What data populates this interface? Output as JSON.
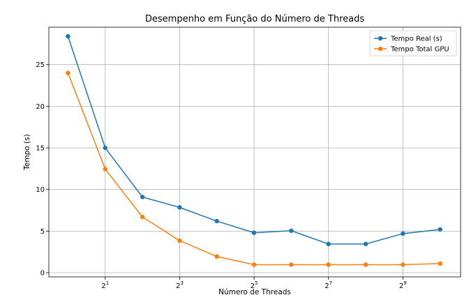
{
  "chart_data": {
    "type": "line",
    "title": "Desempenho em Função do Número de Threads",
    "xlabel": "Número de Threads",
    "ylabel": "Tempo (s)",
    "xscale": "log2",
    "x": [
      1,
      2,
      4,
      8,
      16,
      32,
      64,
      128,
      256,
      512,
      1024
    ],
    "xlim": [
      0.7,
      1500
    ],
    "ylim": [
      -0.5,
      29.5
    ],
    "yticks": [
      0,
      5,
      10,
      15,
      20,
      25
    ],
    "xticks": [
      {
        "value": 2,
        "base": "2",
        "exp": "1"
      },
      {
        "value": 8,
        "base": "2",
        "exp": "3"
      },
      {
        "value": 32,
        "base": "2",
        "exp": "5"
      },
      {
        "value": 128,
        "base": "2",
        "exp": "7"
      },
      {
        "value": 512,
        "base": "2",
        "exp": "9"
      }
    ],
    "grid": true,
    "legend_position": "top-right",
    "series": [
      {
        "name": "Tempo Real (s)",
        "color": "#1f77b4",
        "values": [
          28.4,
          15.0,
          9.1,
          7.85,
          6.2,
          4.8,
          5.05,
          3.45,
          3.45,
          4.7,
          5.2
        ]
      },
      {
        "name": "Tempo Total GPU",
        "color": "#ff7f0e",
        "values": [
          24.0,
          12.45,
          6.7,
          3.85,
          1.95,
          0.97,
          0.97,
          0.97,
          0.97,
          0.97,
          1.1
        ]
      }
    ]
  }
}
